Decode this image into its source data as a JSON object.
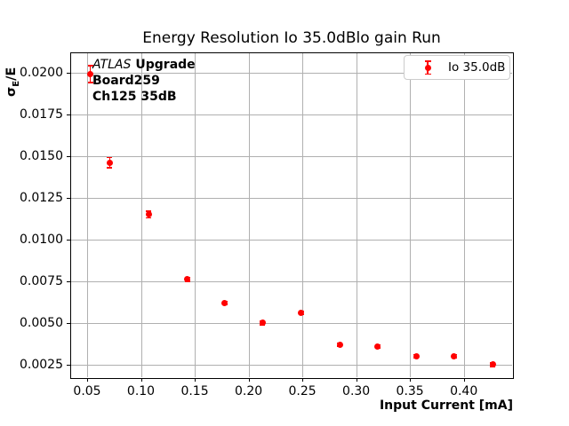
{
  "figure": {
    "background": "#ffffff"
  },
  "annotation": {
    "line1_italic": "ATLAS",
    "line1_bold": "Upgrade",
    "line2": "Board259",
    "line3": "Ch125 35dB"
  },
  "legend": {
    "label": "Io 35.0dB"
  },
  "chart_data": {
    "type": "scatter",
    "title": "Energy Resolution Io 35.0dBlo gain Run",
    "xlabel": "Input Current [mA]",
    "ylabel": "σ_E/E",
    "ylabel_parts": {
      "symbol": "σ",
      "subscript": "E",
      "suffix": "/E"
    },
    "xlim": [
      0.0343,
      0.4457
    ],
    "ylim": [
      0.0017,
      0.0212
    ],
    "xticks": [
      0.05,
      0.1,
      0.15,
      0.2,
      0.25,
      0.3,
      0.35,
      0.4
    ],
    "xtick_labels": [
      "0.05",
      "0.10",
      "0.15",
      "0.20",
      "0.25",
      "0.30",
      "0.35",
      "0.40"
    ],
    "yticks": [
      0.0025,
      0.005,
      0.0075,
      0.01,
      0.0125,
      0.015,
      0.0175,
      0.02
    ],
    "ytick_labels": [
      "0.0025",
      "0.0050",
      "0.0075",
      "0.0100",
      "0.0125",
      "0.0150",
      "0.0175",
      "0.0200"
    ],
    "grid": true,
    "grid_color": "#b0b0b0",
    "legend_position": "upper right",
    "series": [
      {
        "name": "Io 35.0dB",
        "color": "#ff0000",
        "marker": "circle-with-errorbar",
        "x": [
          0.053,
          0.071,
          0.107,
          0.143,
          0.178,
          0.213,
          0.249,
          0.285,
          0.32,
          0.356,
          0.391,
          0.427
        ],
        "y": [
          0.0199,
          0.0146,
          0.0115,
          0.0076,
          0.0062,
          0.005,
          0.0056,
          0.0037,
          0.0036,
          0.003,
          0.003,
          0.0025
        ],
        "yerr": [
          0.0005,
          0.0003,
          0.0002,
          0.00012,
          0.0001,
          0.0001,
          0.0001,
          0.0001,
          0.0001,
          0.0001,
          0.0001,
          0.0001
        ]
      }
    ]
  },
  "colors": {
    "series": "#ff0000",
    "grid": "#b0b0b0",
    "spine": "#000000",
    "text": "#000000",
    "legend_border": "#cccccc"
  }
}
